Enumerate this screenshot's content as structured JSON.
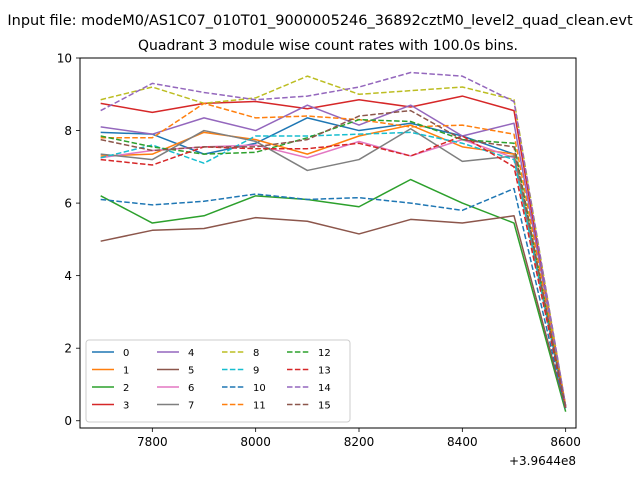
{
  "chart_data": {
    "type": "line",
    "suptitle": "Input file: modeM0/AS1C07_010T01_9000005246_36892cztM0_level2_quad_clean.evt",
    "title": "Quadrant 3 module wise count rates with 100.0s bins.",
    "xlabel": "",
    "ylabel": "",
    "x_offset_label": "+3.9644e8",
    "x": [
      7700,
      7800,
      7900,
      8000,
      8100,
      8200,
      8300,
      8400,
      8500,
      8600
    ],
    "xlim": [
      7660,
      8620
    ],
    "ylim": [
      -0.2,
      10.0
    ],
    "xticks": [
      7800,
      8000,
      8200,
      8400,
      8600
    ],
    "yticks": [
      0,
      2,
      4,
      6,
      8,
      10
    ],
    "grid": false,
    "legend_position": "lower-left",
    "legend_columns": 4,
    "series": [
      {
        "name": "0",
        "color": "#1f77b4",
        "dash": "solid",
        "values": [
          7.95,
          7.9,
          7.35,
          7.65,
          8.35,
          8.0,
          8.2,
          7.85,
          7.35,
          0.35
        ]
      },
      {
        "name": "1",
        "color": "#ff7f0e",
        "dash": "solid",
        "values": [
          7.3,
          7.35,
          7.95,
          7.75,
          7.35,
          7.85,
          8.15,
          7.55,
          7.35,
          0.4
        ]
      },
      {
        "name": "2",
        "color": "#2ca02c",
        "dash": "solid",
        "values": [
          6.2,
          5.45,
          5.65,
          6.2,
          6.1,
          5.9,
          6.65,
          6.0,
          5.45,
          0.25
        ]
      },
      {
        "name": "3",
        "color": "#d62728",
        "dash": "solid",
        "values": [
          8.75,
          8.5,
          8.75,
          8.8,
          8.6,
          8.85,
          8.65,
          8.95,
          8.55,
          0.4
        ]
      },
      {
        "name": "4",
        "color": "#9467bd",
        "dash": "solid",
        "values": [
          8.1,
          7.9,
          8.35,
          8.0,
          8.7,
          8.15,
          8.7,
          7.85,
          8.2,
          0.4
        ]
      },
      {
        "name": "5",
        "color": "#8c564b",
        "dash": "solid",
        "values": [
          4.95,
          5.25,
          5.3,
          5.6,
          5.5,
          5.15,
          5.55,
          5.45,
          5.65,
          0.35
        ]
      },
      {
        "name": "6",
        "color": "#e377c2",
        "dash": "solid",
        "values": [
          7.25,
          7.45,
          7.55,
          7.6,
          7.25,
          7.7,
          7.3,
          7.75,
          7.25,
          0.4
        ]
      },
      {
        "name": "7",
        "color": "#7f7f7f",
        "dash": "solid",
        "values": [
          7.35,
          7.2,
          8.0,
          7.7,
          6.9,
          7.2,
          8.05,
          7.15,
          7.3,
          0.35
        ]
      },
      {
        "name": "8",
        "color": "#bcbd22",
        "dash": "dashed",
        "values": [
          8.85,
          9.2,
          8.75,
          8.9,
          9.5,
          9.0,
          9.1,
          9.2,
          8.85,
          0.4
        ]
      },
      {
        "name": "9",
        "color": "#17becf",
        "dash": "dashed",
        "values": [
          7.25,
          7.6,
          7.1,
          7.85,
          7.85,
          7.9,
          7.95,
          7.65,
          7.2,
          0.35
        ]
      },
      {
        "name": "10",
        "color": "#1f77b4",
        "dash": "dashed",
        "values": [
          6.1,
          5.95,
          6.05,
          6.25,
          6.1,
          6.15,
          6.0,
          5.8,
          6.4,
          0.3
        ]
      },
      {
        "name": "11",
        "color": "#ff7f0e",
        "dash": "dashed",
        "values": [
          7.8,
          7.8,
          8.75,
          8.35,
          8.4,
          8.3,
          8.1,
          8.15,
          7.9,
          0.4
        ]
      },
      {
        "name": "12",
        "color": "#2ca02c",
        "dash": "dashed",
        "values": [
          7.85,
          7.55,
          7.35,
          7.4,
          7.8,
          8.3,
          8.25,
          7.75,
          7.65,
          0.3
        ]
      },
      {
        "name": "13",
        "color": "#d62728",
        "dash": "dashed",
        "values": [
          7.2,
          7.05,
          7.55,
          7.5,
          7.5,
          7.65,
          7.3,
          7.85,
          7.0,
          0.35
        ]
      },
      {
        "name": "14",
        "color": "#9467bd",
        "dash": "dashed",
        "values": [
          8.55,
          9.3,
          9.05,
          8.85,
          8.95,
          9.2,
          9.6,
          9.5,
          8.8,
          0.4
        ]
      },
      {
        "name": "15",
        "color": "#8c564b",
        "dash": "dashed",
        "values": [
          7.75,
          7.45,
          7.55,
          7.55,
          7.75,
          8.4,
          8.55,
          7.75,
          7.55,
          0.35
        ]
      }
    ]
  }
}
